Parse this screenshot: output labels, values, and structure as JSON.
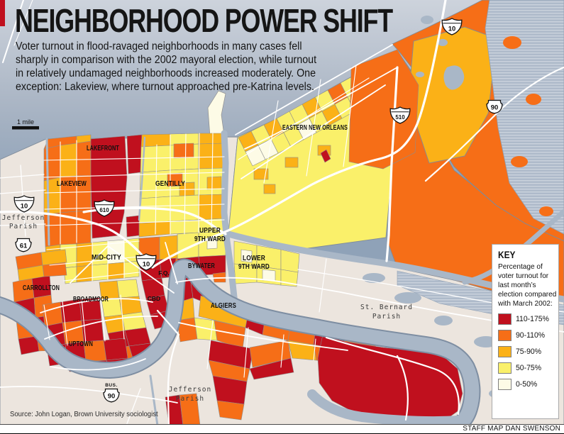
{
  "header": {
    "title": "NEIGHBORHOOD POWER SHIFT",
    "subtitle": "Voter turnout in flood-ravaged neighborhoods in many cases fell sharply in comparison with the 2002 mayoral election, while turnout in relatively undamaged neighborhoods increased moderately. One exception: Lakeview, where turnout approached pre-Katrina levels."
  },
  "map": {
    "scale_label": "1 mile",
    "labels": {
      "lakefront": "LAKEFRONT",
      "lakeview": "LAKEVIEW",
      "gentilly": "GENTILLY",
      "eastern_new_orleans": "EASTERN NEW ORLEANS",
      "upper_9th_line1": "UPPER",
      "upper_9th_line2": "9TH WARD",
      "lower_9th_line1": "LOWER",
      "lower_9th_line2": "9TH WARD",
      "mid_city": "MID-CITY",
      "fq": "F.Q.",
      "bywater": "BYWATER",
      "cbd": "CBD",
      "carrollton": "CARROLLTON",
      "broadmoor": "BROADMOOR",
      "uptown": "UPTOWN",
      "algiers": "ALGIERS",
      "jefferson_west_line1": "Jefferson",
      "jefferson_west_line2": "Parish",
      "st_bernard_line1": "St. Bernard",
      "st_bernard_line2": "Parish",
      "jefferson_south_line1": "Jefferson",
      "jefferson_south_line2": "Parish"
    },
    "shields": {
      "i10": "10",
      "i610": "610",
      "i510": "510",
      "us90": "90",
      "us61": "61",
      "bus_prefix": "BUS.",
      "bus90": "90"
    }
  },
  "legend": {
    "title": "KEY",
    "description": "Percentage of voter turnout for last month’s election compared with March 2002:",
    "items": [
      {
        "label": "110-175%",
        "color": "#c0101e"
      },
      {
        "label": "90-110%",
        "color": "#f66e17"
      },
      {
        "label": "75-90%",
        "color": "#fbb117"
      },
      {
        "label": "50-75%",
        "color": "#faf06a"
      },
      {
        "label": "0-50%",
        "color": "#fdfbe6"
      }
    ]
  },
  "colors": {
    "accent_red": "#c0101e",
    "water_top": "#cdd3dc",
    "water_deep": "#8fa2b8",
    "land_pale": "#ece5de",
    "river": "#a9b7c7"
  },
  "source": "Source: John Logan, Brown University sociologist",
  "credit": "STAFF MAP DAN SWENSON"
}
